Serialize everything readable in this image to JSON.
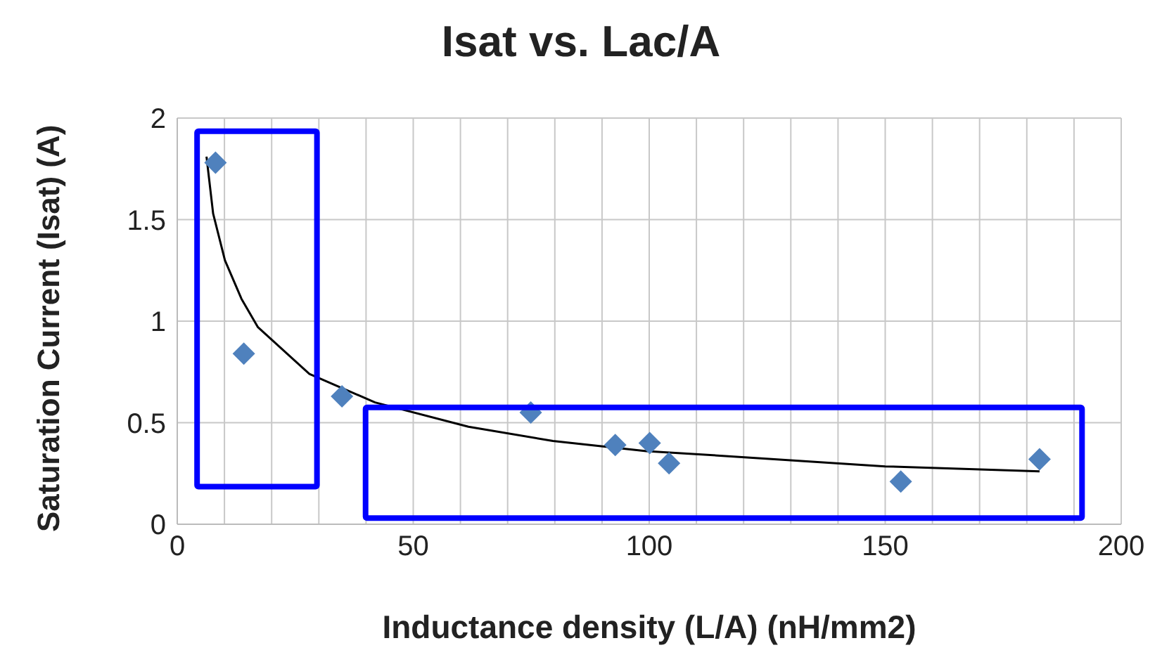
{
  "chart_data": {
    "type": "scatter",
    "title": "Isat vs. Lac/A",
    "xlabel": "Inductance density (L/A) (nH/mm2)",
    "ylabel": "Saturation Current (Isat) (A)",
    "xlim": [
      0,
      200
    ],
    "xticks": [
      0,
      {
        "value": 10,
        "label": null
      },
      {
        "value": 20,
        "label": null
      },
      {
        "value": 30,
        "label": null
      },
      {
        "value": 40,
        "label": null
      },
      50,
      {
        "value": 60,
        "label": null
      },
      {
        "value": 70,
        "label": null
      },
      {
        "value": 80,
        "label": null
      },
      {
        "value": 90,
        "label": null
      },
      100,
      {
        "value": 110,
        "label": null
      },
      {
        "value": 120,
        "label": null
      },
      {
        "value": 130,
        "label": null
      },
      {
        "value": 140,
        "label": null
      },
      150,
      {
        "value": 160,
        "label": null
      },
      {
        "value": 170,
        "label": null
      },
      {
        "value": 180,
        "label": null
      },
      {
        "value": 190,
        "label": null
      },
      200
    ],
    "ylim": [
      0,
      2
    ],
    "yticks": [
      0,
      0.5,
      1,
      1.5,
      2
    ],
    "grid": true,
    "series": [
      {
        "color": "#4f81bd",
        "marker": "diamond",
        "x": [
          8.1,
          14.1,
          34.9,
          74.9,
          92.8,
          100.1,
          104.2,
          153.3,
          182.7
        ],
        "values": [
          1.78,
          0.84,
          0.63,
          0.55,
          0.39,
          0.4,
          0.3,
          0.21,
          0.32
        ]
      },
      {
        "type": "line",
        "color": "#000000",
        "marker": "none",
        "x": [
          6.2,
          7.6,
          10.1,
          13.6,
          17.1,
          28,
          41.9,
          61.7,
          79.6,
          99.4,
          120.2,
          150,
          182.7
        ],
        "values": [
          1.81,
          1.53,
          1.3,
          1.11,
          0.97,
          0.74,
          0.6,
          0.48,
          0.41,
          0.36,
          0.33,
          0.285,
          0.26
        ]
      }
    ]
  }
}
